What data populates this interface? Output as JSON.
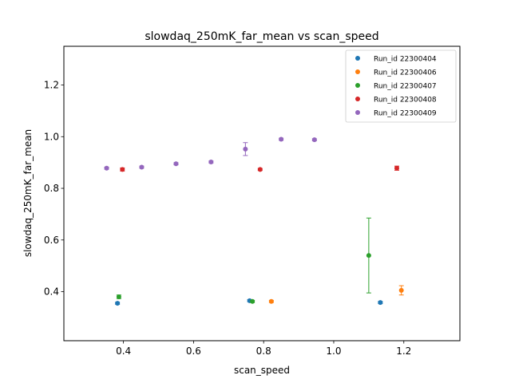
{
  "chart_data": {
    "type": "scatter",
    "title": "slowdaq_250mK_far_mean vs scan_speed",
    "xlabel": "scan_speed",
    "ylabel": "slowdaq_250mK_far_mean",
    "xlim": [
      0.23,
      1.36
    ],
    "ylim": [
      0.21,
      1.35
    ],
    "xticks": [
      "0.4",
      "0.6",
      "0.8",
      "1.0",
      "1.2"
    ],
    "yticks": [
      "0.4",
      "0.6",
      "0.8",
      "1.0",
      "1.2"
    ],
    "grid": false,
    "legend_position": "top-right",
    "series": [
      {
        "name": "Run_id 22300404",
        "color": "#1f77b4",
        "points": [
          {
            "x": 0.383,
            "y": 0.355,
            "err": 0.004
          },
          {
            "x": 0.76,
            "y": 0.365,
            "err": 0.004
          },
          {
            "x": 1.133,
            "y": 0.358,
            "err": 0.004
          }
        ]
      },
      {
        "name": "Run_id 22300406",
        "color": "#ff7f0e",
        "points": [
          {
            "x": 0.822,
            "y": 0.362,
            "err": 0.004
          },
          {
            "x": 1.193,
            "y": 0.405,
            "err": 0.018
          }
        ]
      },
      {
        "name": "Run_id 22300407",
        "color": "#2ca02c",
        "points": [
          {
            "x": 0.387,
            "y": 0.38,
            "err": 0.007
          },
          {
            "x": 0.768,
            "y": 0.362,
            "err": 0.004
          },
          {
            "x": 1.1,
            "y": 0.54,
            "err": 0.145
          }
        ]
      },
      {
        "name": "Run_id 22300408",
        "color": "#d62728",
        "points": [
          {
            "x": 0.397,
            "y": 0.873,
            "err": 0.006
          },
          {
            "x": 0.79,
            "y": 0.873,
            "err": 0.004
          },
          {
            "x": 1.18,
            "y": 0.878,
            "err": 0.008
          }
        ]
      },
      {
        "name": "Run_id 22300409",
        "color": "#9467bd",
        "points": [
          {
            "x": 0.352,
            "y": 0.878,
            "err": 0.004
          },
          {
            "x": 0.452,
            "y": 0.882,
            "err": 0.004
          },
          {
            "x": 0.55,
            "y": 0.895,
            "err": 0.004
          },
          {
            "x": 0.65,
            "y": 0.902,
            "err": 0.004
          },
          {
            "x": 0.748,
            "y": 0.952,
            "err": 0.025
          },
          {
            "x": 0.85,
            "y": 0.99,
            "err": 0.004
          },
          {
            "x": 0.945,
            "y": 0.988,
            "err": 0.004
          }
        ]
      }
    ]
  }
}
